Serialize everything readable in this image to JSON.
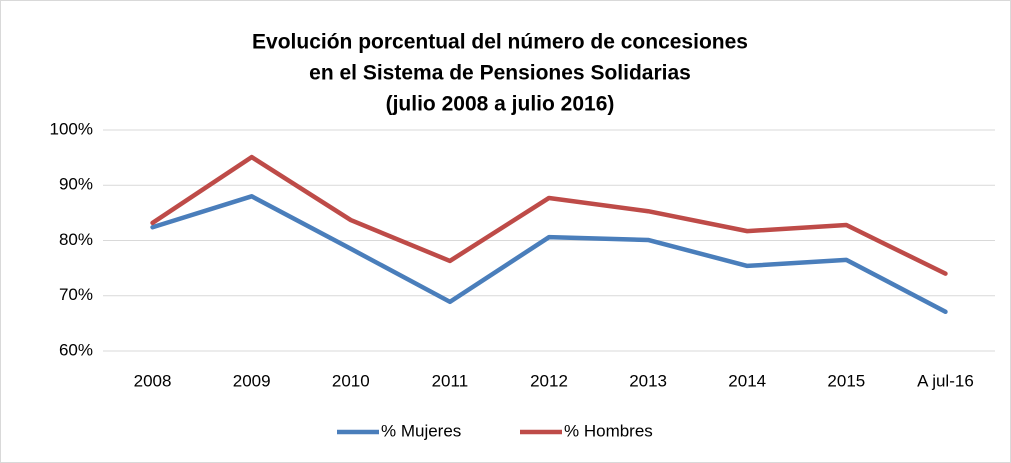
{
  "chart_data": {
    "type": "line",
    "title": [
      "Evolución porcentual del número de concesiones",
      "en el Sistema de Pensiones Solidarias",
      "(julio 2008 a julio 2016)"
    ],
    "categories": [
      "2008",
      "2009",
      "2010",
      "2011",
      "2012",
      "2013",
      "2014",
      "2015",
      "A jul-16"
    ],
    "series": [
      {
        "name": "% Mujeres",
        "color": "#4a7ebb",
        "values": [
          82.4,
          88.0,
          78.5,
          68.9,
          80.6,
          80.1,
          75.4,
          76.5,
          67.1
        ]
      },
      {
        "name": "% Hombres",
        "color": "#be4b48",
        "values": [
          83.2,
          95.1,
          83.7,
          76.3,
          87.7,
          85.3,
          81.7,
          82.8,
          74.0
        ]
      }
    ],
    "ylim": [
      60,
      100
    ],
    "yticks": [
      {
        "value": 60,
        "label": "60%"
      },
      {
        "value": 70,
        "label": "70%"
      },
      {
        "value": 80,
        "label": "80%"
      },
      {
        "value": 90,
        "label": "90%"
      },
      {
        "value": 100,
        "label": "100%"
      }
    ],
    "grid": true,
    "legend": "bottom"
  }
}
